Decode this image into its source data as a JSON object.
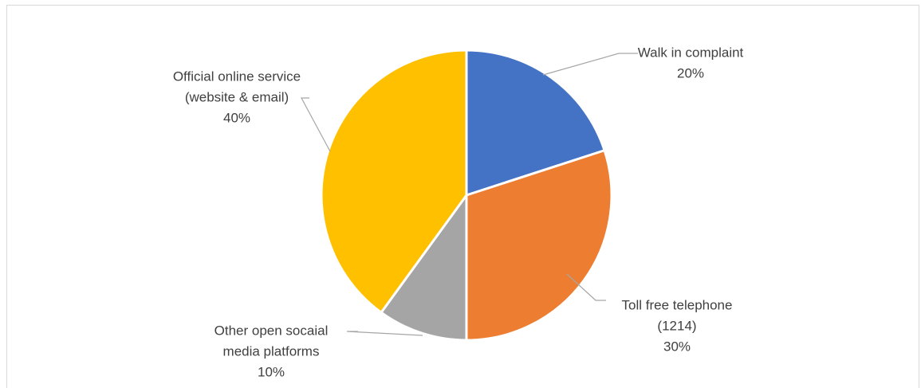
{
  "chart_data": {
    "type": "pie",
    "title": "",
    "categories": [
      "Walk in complaint",
      "Toll free telephone (1214)",
      "Other open socaial media platforms",
      "Official online service (website & email)"
    ],
    "values": [
      20,
      30,
      10,
      40
    ],
    "colors": [
      "#4472C4",
      "#ED7D31",
      "#A5A5A5",
      "#FFC000"
    ],
    "labels": [
      {
        "lines": [
          "Walk in complaint"
        ],
        "percent": "20%"
      },
      {
        "lines": [
          "Toll free telephone",
          "(1214)"
        ],
        "percent": "30%"
      },
      {
        "lines": [
          "Other open socaial",
          "media platforms"
        ],
        "percent": "10%"
      },
      {
        "lines": [
          "Official online service",
          "(website & email)"
        ],
        "percent": "40%"
      }
    ],
    "start_angle": "12 o'clock",
    "direction": "clockwise",
    "legend": "none"
  }
}
